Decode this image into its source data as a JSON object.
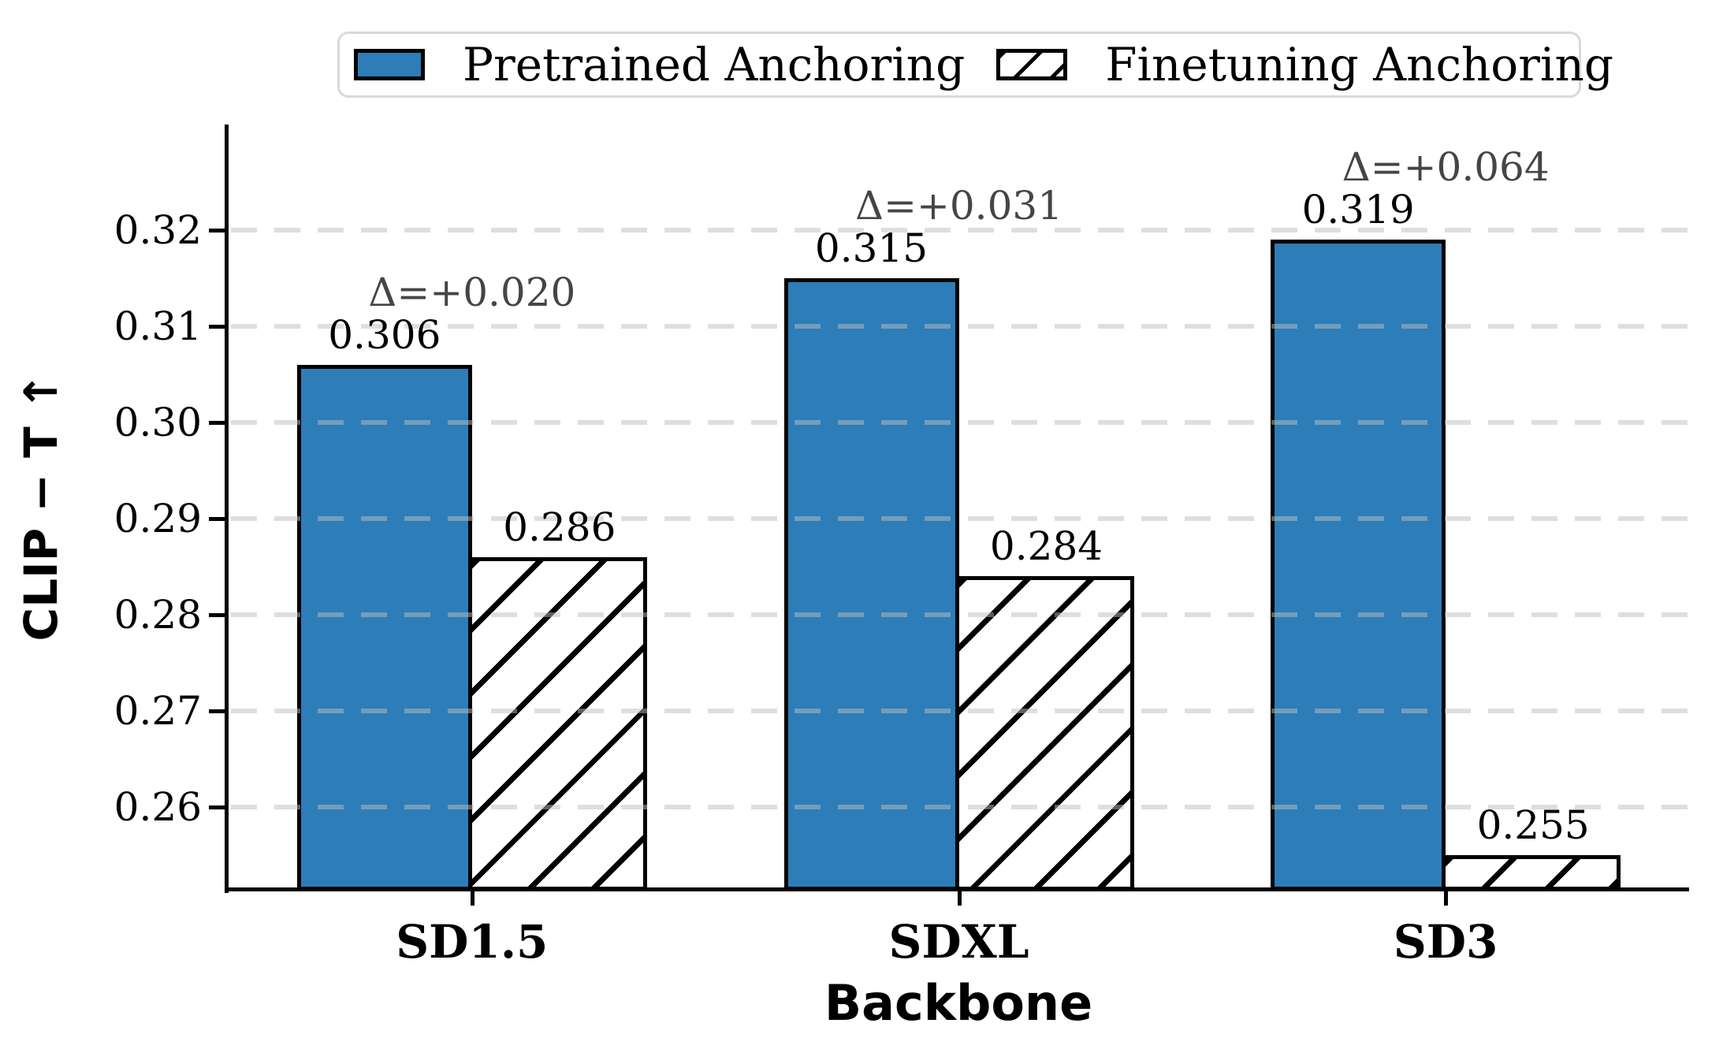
{
  "chart_data": {
    "type": "bar",
    "title": "",
    "categories": [
      "SD1.5",
      "SDXL",
      "SD3"
    ],
    "series": [
      {
        "name": "Pretrained Anchoring",
        "fill": "solid",
        "color": "#2d7db9",
        "values": [
          0.306,
          0.315,
          0.319
        ],
        "value_labels": [
          "0.306",
          "0.315",
          "0.319"
        ]
      },
      {
        "name": "Finetuning Anchoring",
        "fill": "diagonal-hatch",
        "color": "#ffffff",
        "hatch_color": "#000000",
        "values": [
          0.286,
          0.284,
          0.255
        ],
        "value_labels": [
          "0.286",
          "0.284",
          "0.255"
        ]
      }
    ],
    "delta_annotations": [
      {
        "category": "SD1.5",
        "text": "Δ=+0.020"
      },
      {
        "category": "SDXL",
        "text": "Δ=+0.031"
      },
      {
        "category": "SD3",
        "text": "Δ=+0.064"
      }
    ],
    "xlabel": "Backbone",
    "ylabel": "CLIP − T ↑",
    "yticks": [
      "0.26",
      "0.27",
      "0.28",
      "0.29",
      "0.30",
      "0.31",
      "0.32"
    ],
    "ylim": [
      0.2515,
      0.331
    ],
    "grid": "horizontal-dashed",
    "legend_position": "top-center"
  },
  "legend": {
    "items": [
      {
        "label": "Pretrained Anchoring",
        "swatch": "solid-blue"
      },
      {
        "label": "Finetuning Anchoring",
        "swatch": "hatched-white"
      }
    ]
  },
  "colors": {
    "bar_blue": "#2d7db9",
    "bar_edge": "#000000",
    "hatch": "#000000",
    "grid_dash": "#bdbdbd",
    "delta_text": "#454545",
    "text": "#000000",
    "legend_border": "#d9d9d9",
    "background": "#ffffff"
  }
}
